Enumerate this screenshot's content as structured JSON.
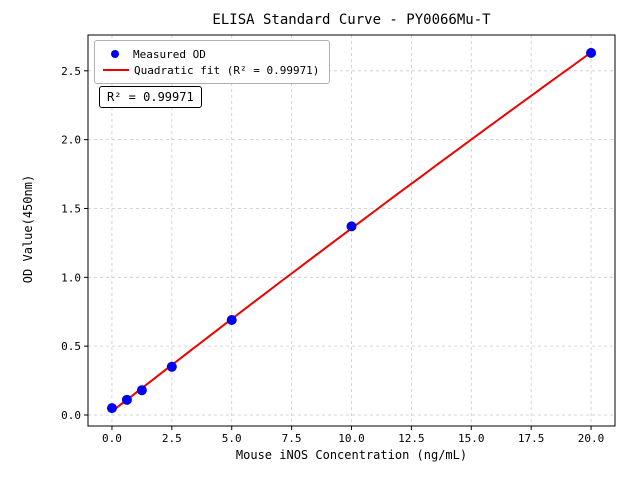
{
  "chart_data": {
    "type": "scatter",
    "title": "ELISA Standard Curve - PY0066Mu-T",
    "xlabel": "Mouse iNOS Concentration (ng/mL)",
    "ylabel": "OD Value(450nm)",
    "x": [
      0,
      0.625,
      1.25,
      2.5,
      5,
      10,
      20
    ],
    "y": [
      0.05,
      0.11,
      0.18,
      0.35,
      0.69,
      1.37,
      2.63
    ],
    "series": [
      {
        "name": "Measured OD",
        "type": "scatter",
        "color": "#0000ee"
      },
      {
        "name": "Quadratic fit (R² = 0.99971)",
        "type": "line",
        "color": "#ee0000"
      }
    ],
    "annotation": "R² = 0.99971",
    "r_squared": 0.99971,
    "xticks": [
      0,
      2.5,
      5,
      7.5,
      10,
      12.5,
      15,
      17.5,
      20
    ],
    "xtick_labels": [
      "0.0",
      "2.5",
      "5.0",
      "7.5",
      "10.0",
      "12.5",
      "15.0",
      "17.5",
      "20.0"
    ],
    "yticks": [
      0,
      0.5,
      1,
      1.5,
      2,
      2.5
    ],
    "ytick_labels": [
      "0.0",
      "0.5",
      "1.0",
      "1.5",
      "2.0",
      "2.5"
    ],
    "xlim": [
      -1,
      21
    ],
    "ylim": [
      -0.08,
      2.76
    ],
    "grid": true,
    "grid_style": "dashed",
    "legend_position": "upper left",
    "colors": {
      "grid": "#c9c9c9",
      "frame": "#000000",
      "background": "#ffffff"
    }
  }
}
